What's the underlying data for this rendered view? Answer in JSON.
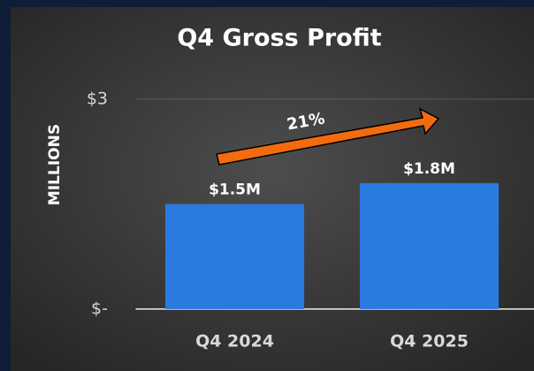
{
  "chart_data": {
    "type": "bar",
    "title": "Q4 Gross Profit",
    "y_label": "MILLIONS",
    "categories": [
      "Q4 2024",
      "Q4 2025"
    ],
    "values": [
      1.5,
      1.8
    ],
    "value_labels": [
      "$1.5M",
      "$1.8M"
    ],
    "color": "#2b7bdf",
    "annotation": "21%",
    "annotation_color": "#f26b0f",
    "ylim": [
      0,
      3
    ],
    "yticks": [
      {
        "value": 0,
        "label": "$-"
      },
      {
        "value": 3,
        "label": "$3"
      }
    ],
    "grid": true
  }
}
